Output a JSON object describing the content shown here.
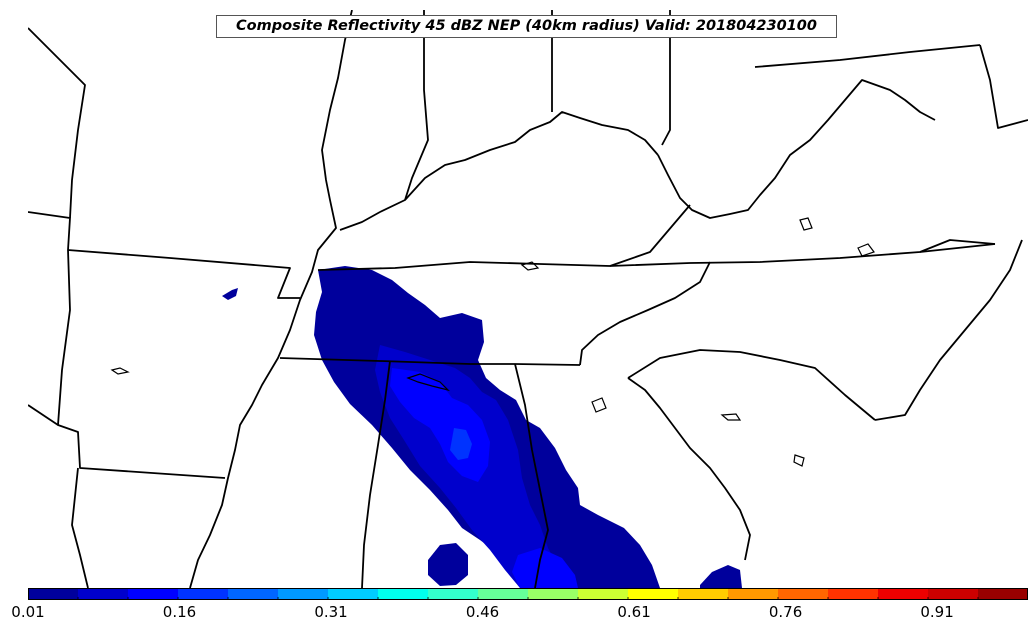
{
  "title": "Composite Reflectivity 45 dBZ NEP (40km radius) Valid: 201804230100",
  "colorbar": {
    "min": 0.01,
    "max": 1.0,
    "tick_labels": [
      "0.01",
      "0.16",
      "0.31",
      "0.46",
      "0.61",
      "0.76",
      "0.91"
    ],
    "colors": [
      "#00009c",
      "#0000cc",
      "#0000ff",
      "#0033ff",
      "#0066ff",
      "#0099ff",
      "#00ccff",
      "#00ffee",
      "#33ffcc",
      "#66ff99",
      "#99ff66",
      "#ccff33",
      "#ffff00",
      "#ffcc00",
      "#ff9900",
      "#ff6600",
      "#ff3300",
      "#ee0000",
      "#cc0000",
      "#990000"
    ]
  },
  "probability_field": {
    "outer_color": "#00009c",
    "inner_color": "#0000cc",
    "peak_color": "#0000ff",
    "core_color": "#0033ff"
  }
}
